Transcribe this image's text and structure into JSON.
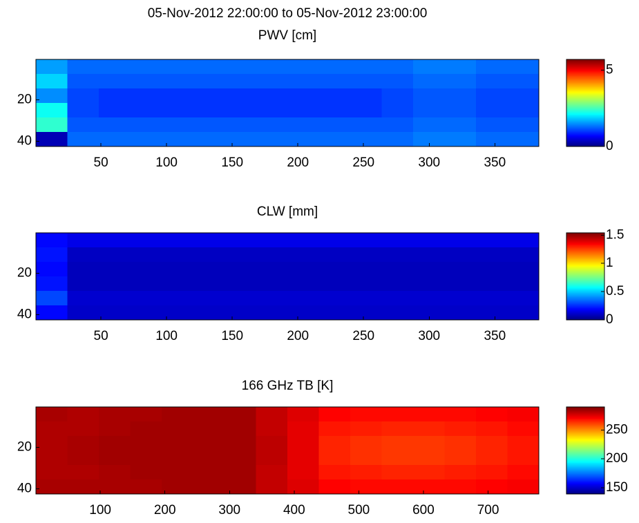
{
  "chart_data": [
    {
      "type": "heatmap",
      "title": "05-Nov-2012 22:00:00 to 05-Nov-2012 23:00:00",
      "subtitle": "PWV [cm]",
      "xlim": [
        0.5,
        383.5
      ],
      "xticks": [
        50,
        100,
        150,
        200,
        250,
        300,
        350
      ],
      "ylim": [
        0.5,
        42.5
      ],
      "yticks": [
        20,
        40
      ],
      "y_reverse": true,
      "clim": [
        0,
        5.7
      ],
      "cticks": [
        0,
        5
      ],
      "colormap": "jet",
      "z": [
        [
          1.6,
          1.3,
          1.3,
          1.3,
          1.3,
          1.3,
          1.3,
          1.3,
          1.3,
          1.3,
          1.3,
          1.3,
          1.4,
          1.4,
          1.3,
          1.3
        ],
        [
          1.9,
          1.2,
          1.2,
          1.2,
          1.2,
          1.2,
          1.2,
          1.2,
          1.2,
          1.2,
          1.2,
          1.2,
          1.3,
          1.3,
          1.2,
          1.2
        ],
        [
          1.5,
          1.1,
          1.0,
          1.0,
          1.0,
          1.0,
          1.0,
          1.0,
          1.0,
          1.0,
          1.0,
          1.1,
          1.2,
          1.2,
          1.1,
          1.1
        ],
        [
          2.2,
          1.1,
          1.0,
          1.0,
          1.0,
          1.0,
          1.0,
          1.0,
          1.0,
          1.0,
          1.0,
          1.1,
          1.2,
          1.2,
          1.1,
          1.1
        ],
        [
          2.4,
          1.2,
          1.2,
          1.2,
          1.2,
          1.2,
          1.2,
          1.2,
          1.2,
          1.2,
          1.2,
          1.2,
          1.3,
          1.3,
          1.2,
          1.2
        ],
        [
          0.3,
          1.3,
          1.3,
          1.3,
          1.3,
          1.3,
          1.3,
          1.3,
          1.3,
          1.3,
          1.3,
          1.3,
          1.4,
          1.4,
          1.3,
          1.3
        ]
      ]
    },
    {
      "type": "heatmap",
      "title": "CLW [mm]",
      "xlim": [
        0.5,
        383.5
      ],
      "xticks": [
        50,
        100,
        150,
        200,
        250,
        300,
        350
      ],
      "ylim": [
        0.5,
        42.5
      ],
      "yticks": [
        20,
        40
      ],
      "y_reverse": true,
      "clim": [
        0,
        1.54
      ],
      "cticks": [
        0,
        0.5,
        1,
        1.5
      ],
      "colormap": "jet",
      "z": [
        [
          0.2,
          0.16,
          0.16,
          0.16,
          0.16,
          0.16,
          0.16,
          0.16,
          0.16,
          0.16,
          0.16,
          0.16,
          0.16,
          0.16,
          0.16,
          0.16
        ],
        [
          0.22,
          0.1,
          0.1,
          0.1,
          0.1,
          0.1,
          0.1,
          0.1,
          0.1,
          0.1,
          0.1,
          0.1,
          0.1,
          0.1,
          0.1,
          0.1
        ],
        [
          0.2,
          0.09,
          0.09,
          0.09,
          0.09,
          0.09,
          0.09,
          0.09,
          0.09,
          0.09,
          0.09,
          0.09,
          0.09,
          0.09,
          0.09,
          0.09
        ],
        [
          0.22,
          0.09,
          0.09,
          0.09,
          0.09,
          0.09,
          0.09,
          0.09,
          0.09,
          0.09,
          0.09,
          0.09,
          0.09,
          0.09,
          0.09,
          0.09
        ],
        [
          0.3,
          0.12,
          0.12,
          0.12,
          0.12,
          0.12,
          0.12,
          0.12,
          0.12,
          0.12,
          0.12,
          0.12,
          0.12,
          0.12,
          0.12,
          0.12
        ],
        [
          0.2,
          0.11,
          0.11,
          0.11,
          0.11,
          0.11,
          0.11,
          0.11,
          0.11,
          0.11,
          0.11,
          0.11,
          0.11,
          0.11,
          0.11,
          0.11
        ]
      ]
    },
    {
      "type": "heatmap",
      "title": "166 GHz TB [K]",
      "xlim": [
        0.5,
        778.5
      ],
      "xticks": [
        100,
        200,
        300,
        400,
        500,
        600,
        700
      ],
      "ylim": [
        0.5,
        42.5
      ],
      "yticks": [
        20,
        40
      ],
      "y_reverse": true,
      "clim": [
        139,
        290
      ],
      "cticks": [
        150,
        200,
        250
      ],
      "colormap": "jet",
      "z": [
        [
          284,
          283,
          284,
          284,
          285,
          285,
          285,
          280,
          276,
          271,
          270,
          270,
          270,
          270,
          271,
          272
        ],
        [
          283,
          283,
          284,
          285,
          285,
          285,
          285,
          280,
          275,
          268,
          267,
          266,
          266,
          267,
          268,
          270
        ],
        [
          283,
          284,
          285,
          285,
          285,
          285,
          285,
          281,
          275,
          266,
          264,
          263,
          263,
          264,
          266,
          268
        ],
        [
          283,
          284,
          285,
          285,
          285,
          285,
          285,
          281,
          275,
          266,
          264,
          263,
          263,
          264,
          266,
          268
        ],
        [
          283,
          283,
          284,
          285,
          285,
          285,
          285,
          280,
          275,
          268,
          267,
          266,
          266,
          267,
          268,
          270
        ],
        [
          284,
          284,
          284,
          284,
          285,
          285,
          285,
          280,
          276,
          271,
          270,
          270,
          270,
          270,
          271,
          272
        ]
      ]
    }
  ]
}
